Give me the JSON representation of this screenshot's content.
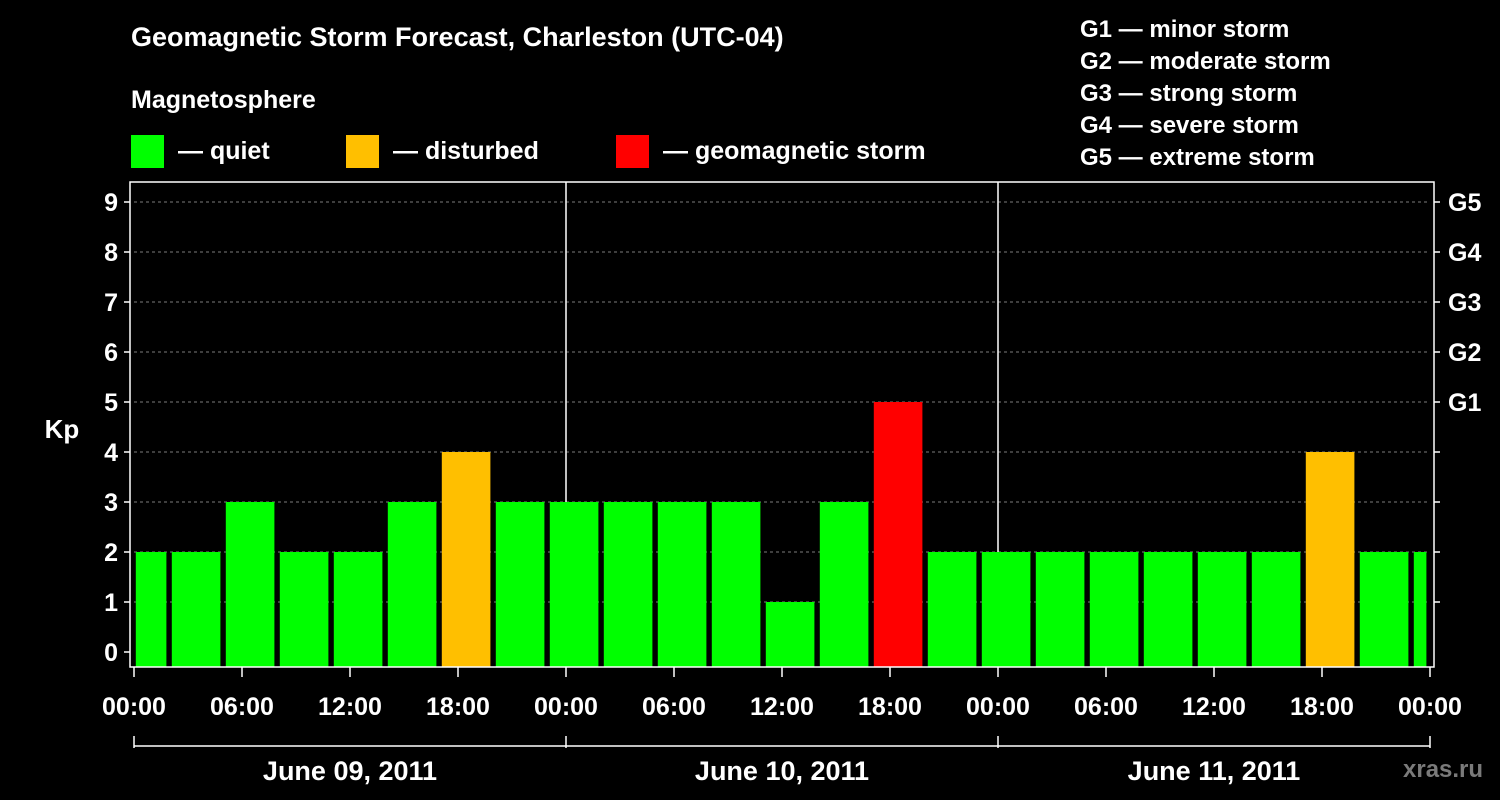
{
  "chart_data": {
    "type": "bar",
    "title": "Geomagnetic Storm Forecast, Charleston (UTC-04)",
    "ylabel": "Kp",
    "ylim": [
      0,
      9
    ],
    "y_ticks": [
      "0",
      "1",
      "2",
      "3",
      "4",
      "5",
      "6",
      "7",
      "8",
      "9"
    ],
    "right_ticks": [
      {
        "value": 5,
        "label": "G1"
      },
      {
        "value": 6,
        "label": "G2"
      },
      {
        "value": 7,
        "label": "G3"
      },
      {
        "value": 8,
        "label": "G4"
      },
      {
        "value": 9,
        "label": "G5"
      }
    ],
    "x_tick_labels": [
      "00:00",
      "06:00",
      "12:00",
      "18:00",
      "00:00",
      "06:00",
      "12:00",
      "18:00",
      "00:00",
      "06:00",
      "12:00",
      "18:00",
      "00:00"
    ],
    "x_range_hours": [
      0,
      72
    ],
    "days": [
      "June 09, 2011",
      "June 10, 2011",
      "June 11, 2011"
    ],
    "bar_width_hours": 2.7,
    "first_bar_start_hour": 0,
    "bar_start_hours": [
      0.1,
      2.1,
      5.1,
      8.1,
      11.1,
      14.1,
      17.1,
      20.1,
      23.1,
      26.1,
      29.1,
      32.1,
      35.1,
      38.1,
      41.1,
      44.1,
      47.1,
      50.1,
      53.1,
      56.1,
      59.1,
      62.1,
      65.1,
      68.1,
      71.1
    ],
    "bar_end_hours": [
      1.8,
      4.8,
      7.8,
      10.8,
      13.8,
      16.8,
      19.8,
      22.8,
      25.8,
      28.8,
      31.8,
      34.8,
      37.8,
      40.8,
      43.8,
      46.8,
      49.8,
      52.8,
      55.8,
      58.8,
      61.8,
      64.8,
      67.8,
      70.8,
      71.8
    ],
    "values": [
      2,
      2,
      3,
      2,
      2,
      3,
      4,
      3,
      3,
      3,
      3,
      3,
      1,
      3,
      5,
      2,
      2,
      2,
      2,
      2,
      2,
      2,
      4,
      2,
      2
    ],
    "grid": true
  },
  "legend": {
    "heading": "Magnetosphere",
    "items": [
      {
        "label": "— quiet",
        "color": "#00ff00"
      },
      {
        "label": "— disturbed",
        "color": "#ffbf00"
      },
      {
        "label": "— geomagnetic storm",
        "color": "#ff0000"
      }
    ]
  },
  "storm_scale": [
    "G1 — minor storm",
    "G2 — moderate storm",
    "G3 — strong storm",
    "G4 — severe storm",
    "G5 — extreme storm"
  ],
  "watermark": "xras.ru"
}
